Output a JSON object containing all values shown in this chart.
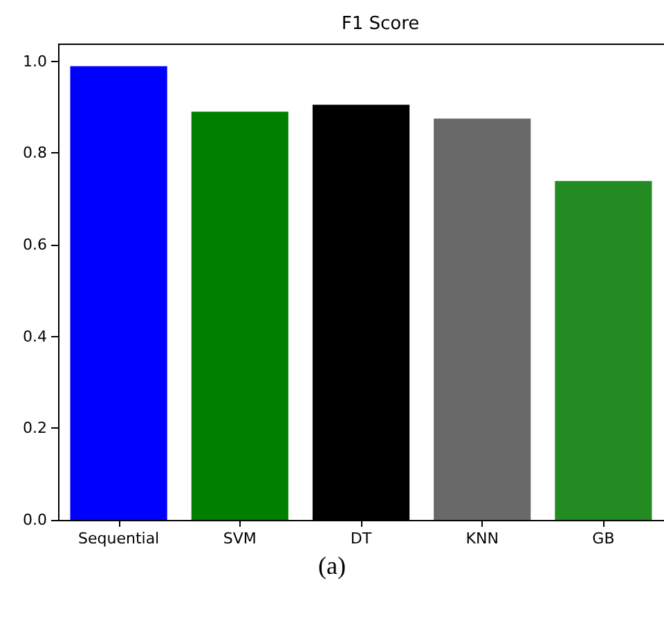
{
  "chart_data": {
    "type": "bar",
    "title": "F1 Score",
    "categories": [
      "Sequential",
      "SVM",
      "DT",
      "KNN",
      "GB"
    ],
    "values": [
      0.989,
      0.89,
      0.905,
      0.875,
      0.739
    ],
    "colors": [
      "#0000ff",
      "#008000",
      "#000000",
      "#696969",
      "#228b22"
    ],
    "ylim": [
      0,
      1.037
    ],
    "yticks": [
      {
        "value": 0,
        "label": "0.0"
      },
      0.2,
      0.4,
      0.6,
      0.8,
      {
        "value": 1,
        "label": "1.0"
      }
    ],
    "grid": false,
    "annotations": [
      "(a)"
    ]
  }
}
